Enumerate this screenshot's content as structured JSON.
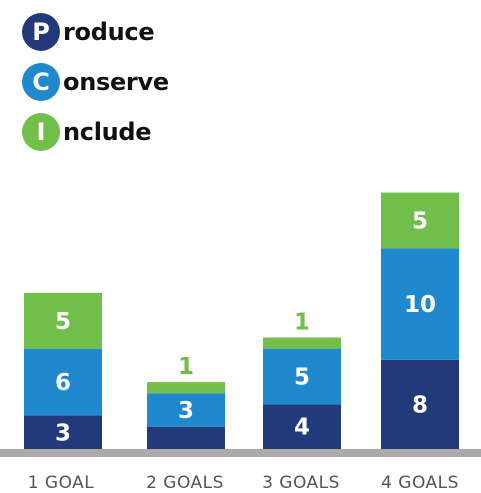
{
  "colors": {
    "produce": "#233a7a",
    "conserve": "#2088cc",
    "include": "#72be4b",
    "axis": "#aaaaaa",
    "label": "#ffffff"
  },
  "legend": [
    {
      "letter": "P",
      "rest": "roduce",
      "color_key": "produce"
    },
    {
      "letter": "C",
      "rest": "onserve",
      "color_key": "conserve"
    },
    {
      "letter": "I",
      "rest": "nclude",
      "color_key": "include"
    }
  ],
  "chart_data": {
    "type": "bar",
    "stacked": true,
    "categories": [
      "1 GOAL",
      "2 GOALS",
      "3 GOALS",
      "4 GOALS"
    ],
    "series": [
      {
        "color_key": "produce",
        "values": [
          3,
          2,
          4,
          8
        ]
      },
      {
        "color_key": "conserve",
        "values": [
          6,
          3,
          5,
          10
        ]
      },
      {
        "color_key": "include",
        "values": [
          5,
          1,
          1,
          5
        ]
      }
    ],
    "grid": false,
    "legend_position": "top-left"
  }
}
